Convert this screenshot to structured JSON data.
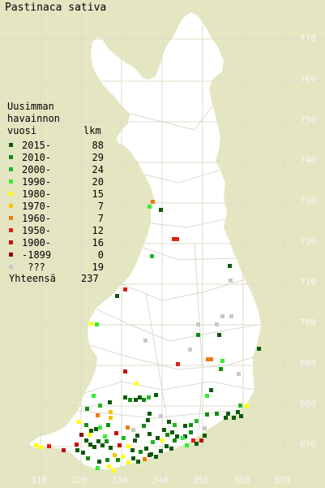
{
  "title": "Pastinaca sativa",
  "legend": {
    "heading": [
      "Uusimman",
      "havainnon"
    ],
    "col_year": "vuosi",
    "col_count": "lkm",
    "rows": [
      {
        "label": "2015-",
        "count": "88",
        "color": "#0a5a0a"
      },
      {
        "label": "2010-",
        "count": "29",
        "color": "#138a13"
      },
      {
        "label": "2000-",
        "count": "24",
        "color": "#24b824"
      },
      {
        "label": "1990-",
        "count": "20",
        "color": "#33ee33"
      },
      {
        "label": "1980-",
        "count": "15",
        "color": "#ffff00"
      },
      {
        "label": "1970-",
        "count": "7",
        "color": "#f2c400"
      },
      {
        "label": "1960-",
        "count": "7",
        "color": "#f07a10"
      },
      {
        "label": "1950-",
        "count": "12",
        "color": "#e22010"
      },
      {
        "label": "1900-",
        "count": "16",
        "color": "#c01010"
      },
      {
        "label": "-1899",
        "count": "0",
        "color": "#8a0a0a"
      },
      {
        "label": " ???",
        "count": "19",
        "color": "#c8c8c8"
      }
    ],
    "total_label": "Yhteensä",
    "total_count": "237"
  },
  "x_ticks": [
    "310",
    "320",
    "330",
    "340",
    "350",
    "360",
    "370"
  ],
  "y_ticks": [
    "770",
    "760",
    "750",
    "740",
    "730",
    "720",
    "710",
    "700",
    "690",
    "680",
    "670"
  ],
  "colors": {
    "background": "#e4e6c2",
    "land": "#ffffff",
    "grid": "#dcdcc8"
  }
}
